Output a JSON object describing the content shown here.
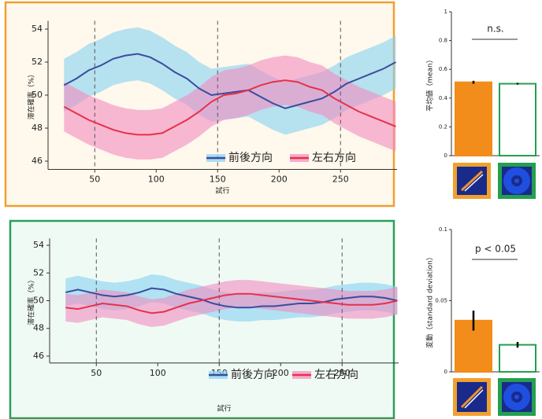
{
  "chart_data": [
    {
      "type": "line",
      "xlabel": "試行",
      "ylabel": "滞在確率（%）",
      "xlim": [
        12,
        296
      ],
      "xticks": [
        50,
        100,
        150,
        200,
        250
      ],
      "ylim": [
        45.5,
        54.5
      ],
      "yticks": [
        46,
        48,
        50,
        52,
        54
      ],
      "vlines": [
        50,
        150,
        250
      ],
      "legend": "lower right",
      "frame_color": "#f0a030",
      "background": "#fff8ec",
      "x": [
        25,
        35,
        45,
        55,
        65,
        75,
        85,
        95,
        105,
        115,
        125,
        135,
        145,
        155,
        165,
        175,
        185,
        195,
        205,
        215,
        225,
        235,
        245,
        255,
        265,
        275,
        285,
        295
      ],
      "series": [
        {
          "name": "前後方向",
          "color": "#3a4c9e",
          "band_color": "#86d2f2",
          "values": [
            50.6,
            51.0,
            51.5,
            51.8,
            52.2,
            52.4,
            52.5,
            52.3,
            51.9,
            51.4,
            51.0,
            50.4,
            50.0,
            50.1,
            50.2,
            50.3,
            49.9,
            49.5,
            49.2,
            49.4,
            49.6,
            49.8,
            50.2,
            50.7,
            51.0,
            51.3,
            51.6,
            52.0
          ],
          "upper": [
            52.2,
            52.6,
            53.1,
            53.4,
            53.8,
            54.0,
            54.1,
            53.9,
            53.5,
            53.0,
            52.6,
            52.0,
            51.6,
            51.7,
            51.8,
            51.9,
            51.5,
            51.1,
            50.8,
            51.0,
            51.2,
            51.4,
            51.8,
            52.3,
            52.6,
            52.9,
            53.2,
            53.6
          ],
          "lower": [
            49.0,
            49.4,
            49.9,
            50.2,
            50.6,
            50.8,
            50.9,
            50.7,
            50.3,
            49.8,
            49.4,
            48.8,
            48.4,
            48.5,
            48.6,
            48.7,
            48.3,
            47.9,
            47.6,
            47.8,
            48.0,
            48.2,
            48.6,
            49.1,
            49.4,
            49.7,
            50.0,
            50.4
          ]
        },
        {
          "name": "左右方向",
          "color": "#e8304a",
          "band_color": "#f28cc0",
          "values": [
            49.3,
            48.9,
            48.5,
            48.2,
            47.9,
            47.7,
            47.6,
            47.6,
            47.7,
            48.1,
            48.5,
            49.0,
            49.6,
            50.0,
            50.1,
            50.3,
            50.6,
            50.8,
            50.9,
            50.8,
            50.5,
            50.3,
            49.8,
            49.4,
            49.0,
            48.7,
            48.4,
            48.1
          ],
          "upper": [
            50.8,
            50.4,
            50.0,
            49.7,
            49.4,
            49.2,
            49.1,
            49.1,
            49.2,
            49.6,
            50.0,
            50.5,
            51.1,
            51.5,
            51.6,
            51.8,
            52.1,
            52.3,
            52.4,
            52.3,
            52.0,
            51.8,
            51.3,
            50.9,
            50.5,
            50.2,
            49.9,
            49.6
          ],
          "lower": [
            47.8,
            47.4,
            47.0,
            46.7,
            46.4,
            46.2,
            46.1,
            46.1,
            46.2,
            46.6,
            47.0,
            47.5,
            48.1,
            48.5,
            48.6,
            48.8,
            49.1,
            49.3,
            49.4,
            49.3,
            49.0,
            48.8,
            48.3,
            47.9,
            47.5,
            47.2,
            46.9,
            46.6
          ]
        }
      ]
    },
    {
      "type": "line",
      "xlabel": "試行",
      "ylabel": "滞在確率（%）",
      "xlim": [
        12,
        296
      ],
      "xticks": [
        50,
        100,
        150,
        200,
        250
      ],
      "ylim": [
        45.5,
        54.5
      ],
      "yticks": [
        46,
        48,
        50,
        52,
        54
      ],
      "vlines": [
        50,
        150,
        250
      ],
      "legend": "lower right",
      "frame_color": "#2aa05a",
      "background": "#f0faf4",
      "x": [
        25,
        35,
        45,
        55,
        65,
        75,
        85,
        95,
        105,
        115,
        125,
        135,
        145,
        155,
        165,
        175,
        185,
        195,
        205,
        215,
        225,
        235,
        245,
        255,
        265,
        275,
        285,
        295
      ],
      "series": [
        {
          "name": "前後方向",
          "color": "#3a4c9e",
          "band_color": "#86d2f2",
          "values": [
            50.6,
            50.8,
            50.6,
            50.4,
            50.3,
            50.4,
            50.6,
            50.9,
            50.8,
            50.5,
            50.3,
            50.1,
            49.8,
            49.6,
            49.5,
            49.5,
            49.6,
            49.6,
            49.7,
            49.8,
            49.8,
            49.9,
            50.1,
            50.2,
            50.3,
            50.3,
            50.2,
            50.0
          ],
          "upper": [
            51.6,
            51.8,
            51.6,
            51.4,
            51.3,
            51.4,
            51.6,
            51.9,
            51.8,
            51.5,
            51.3,
            51.1,
            50.8,
            50.6,
            50.5,
            50.5,
            50.6,
            50.6,
            50.7,
            50.8,
            50.8,
            50.9,
            51.1,
            51.2,
            51.3,
            51.3,
            51.2,
            51.0
          ],
          "lower": [
            49.6,
            49.8,
            49.6,
            49.4,
            49.3,
            49.4,
            49.6,
            49.9,
            49.8,
            49.5,
            49.3,
            49.1,
            48.8,
            48.6,
            48.5,
            48.5,
            48.6,
            48.6,
            48.7,
            48.8,
            48.8,
            48.9,
            49.1,
            49.2,
            49.3,
            49.3,
            49.2,
            49.0
          ]
        },
        {
          "name": "左右方向",
          "color": "#e8304a",
          "band_color": "#f28cc0",
          "values": [
            49.5,
            49.4,
            49.6,
            49.8,
            49.7,
            49.6,
            49.3,
            49.1,
            49.2,
            49.5,
            49.8,
            50.0,
            50.2,
            50.4,
            50.5,
            50.5,
            50.4,
            50.3,
            50.2,
            50.1,
            50.0,
            49.9,
            49.8,
            49.7,
            49.7,
            49.7,
            49.8,
            50.0
          ],
          "upper": [
            50.5,
            50.4,
            50.6,
            50.8,
            50.7,
            50.6,
            50.3,
            50.1,
            50.2,
            50.5,
            50.8,
            51.0,
            51.2,
            51.4,
            51.5,
            51.5,
            51.4,
            51.3,
            51.2,
            51.1,
            51.0,
            50.9,
            50.8,
            50.7,
            50.7,
            50.7,
            50.8,
            51.0
          ],
          "lower": [
            48.5,
            48.4,
            48.6,
            48.8,
            48.7,
            48.6,
            48.3,
            48.1,
            48.2,
            48.5,
            48.8,
            49.0,
            49.2,
            49.4,
            49.5,
            49.5,
            49.4,
            49.3,
            49.2,
            49.1,
            49.0,
            48.9,
            48.8,
            48.7,
            48.7,
            48.7,
            48.8,
            49.0
          ]
        }
      ]
    },
    {
      "type": "bar",
      "ylabel": "平均値（mean）",
      "annotation": "n.s.",
      "ylim": [
        0,
        1
      ],
      "yticks": [
        0,
        0.2,
        0.4,
        0.6,
        0.8,
        1
      ],
      "categories": [
        null,
        null
      ],
      "values": [
        0.51,
        0.5
      ],
      "errors": [
        0.01,
        0.006
      ],
      "colors": [
        "#f28c1a",
        "#ffffff"
      ],
      "edge_colors": [
        "#f28c1a",
        "#22a050"
      ]
    },
    {
      "type": "bar",
      "ylabel": "変動（standard deviation）",
      "annotation": "p < 0.05",
      "ylim": [
        0,
        0.1
      ],
      "yticks": [
        0,
        0.05,
        0.1
      ],
      "categories": [
        null,
        null
      ],
      "values": [
        0.036,
        0.019
      ],
      "errors": [
        0.007,
        0.002
      ],
      "colors": [
        "#f28c1a",
        "#ffffff"
      ],
      "edge_colors": [
        "#f28c1a",
        "#22a050"
      ]
    }
  ]
}
